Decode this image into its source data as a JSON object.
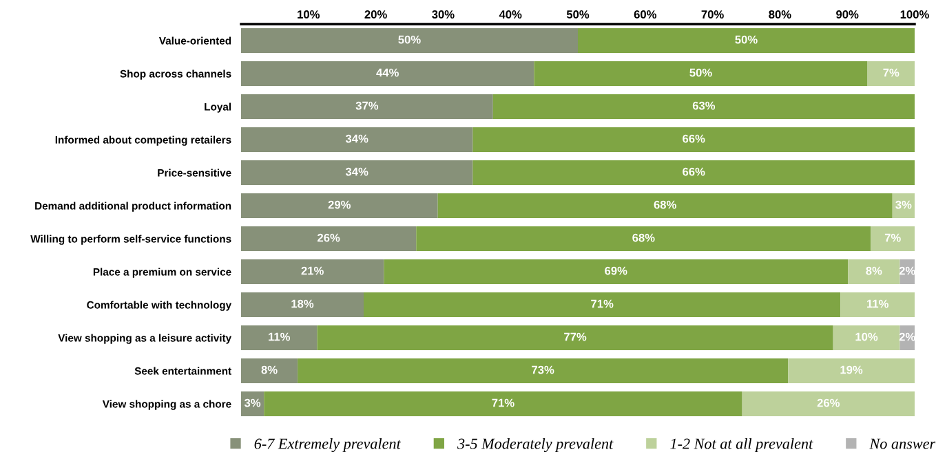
{
  "chart_data": {
    "type": "bar",
    "orientation": "horizontal",
    "stacked": true,
    "categories": [
      "Value-oriented",
      "Shop across channels",
      "Loyal",
      "Informed about competing retailers",
      "Price-sensitive",
      "Demand additional product information",
      "Willing to perform self-service functions",
      "Place a premium on service",
      "Comfortable with technology",
      "View shopping as a leisure activity",
      "Seek entertainment",
      "View shopping as a chore"
    ],
    "series": [
      {
        "name": "6-7 Extremely prevalent",
        "color": "#879179",
        "values": [
          50.0,
          43.5,
          37.4,
          34.4,
          34.4,
          29.2,
          26.0,
          21.2,
          18.2,
          11.3,
          8.4,
          3.4
        ],
        "value_labels": [
          "50%",
          "44%",
          "37%",
          "34%",
          "34%",
          "29%",
          "26%",
          "21%",
          "18%",
          "11%",
          "8%",
          "3%"
        ]
      },
      {
        "name": "3-5 Moderately prevalent",
        "color": "#7fa544",
        "values": [
          50.0,
          49.5,
          62.6,
          65.6,
          65.6,
          67.5,
          67.5,
          68.9,
          70.8,
          76.6,
          72.8,
          71.0
        ],
        "value_labels": [
          "50%",
          "50%",
          "63%",
          "66%",
          "66%",
          "68%",
          "68%",
          "69%",
          "71%",
          "77%",
          "73%",
          "71%"
        ]
      },
      {
        "name": "1-2 Not at all prevalent",
        "color": "#bdd19b",
        "values": [
          null,
          7.0,
          null,
          null,
          null,
          3.3,
          6.5,
          7.7,
          11.0,
          9.9,
          18.8,
          25.6
        ],
        "value_labels": [
          null,
          "7%",
          null,
          null,
          null,
          "3%",
          "7%",
          "8%",
          "11%",
          "10%",
          "19%",
          "26%"
        ]
      },
      {
        "name": "No answer",
        "color": "#b3b3b3",
        "values": [
          null,
          null,
          null,
          null,
          null,
          null,
          null,
          2.2,
          null,
          2.2,
          null,
          null
        ],
        "value_labels": [
          null,
          null,
          null,
          null,
          null,
          null,
          null,
          "2%",
          null,
          "2%",
          null,
          null
        ]
      }
    ],
    "xlim": [
      0,
      100
    ],
    "xticks": [
      {
        "value": 10,
        "label": "10%"
      },
      {
        "value": 20,
        "label": "20%"
      },
      {
        "value": 30,
        "label": "30%"
      },
      {
        "value": 40,
        "label": "40%"
      },
      {
        "value": 50,
        "label": "50%"
      },
      {
        "value": 60,
        "label": "60%"
      },
      {
        "value": 70,
        "label": "70%"
      },
      {
        "value": 80,
        "label": "80%"
      },
      {
        "value": 90,
        "label": "90%"
      },
      {
        "value": 100,
        "label": "100%"
      }
    ],
    "grid": false,
    "legend": "bottom",
    "marker": "square"
  }
}
